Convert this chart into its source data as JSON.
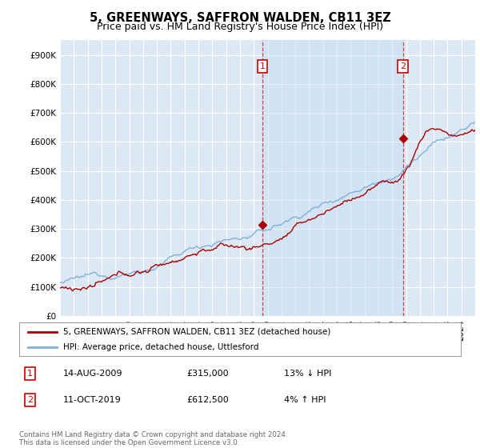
{
  "title": "5, GREENWAYS, SAFFRON WALDEN, CB11 3EZ",
  "subtitle": "Price paid vs. HM Land Registry's House Price Index (HPI)",
  "ylabel_ticks": [
    "£0",
    "£100K",
    "£200K",
    "£300K",
    "£400K",
    "£500K",
    "£600K",
    "£700K",
    "£800K",
    "£900K"
  ],
  "ytick_values": [
    0,
    100000,
    200000,
    300000,
    400000,
    500000,
    600000,
    700000,
    800000,
    900000
  ],
  "ylim": [
    0,
    950000
  ],
  "xlim_left": 1995,
  "xlim_right": 2025,
  "xlabel_years": [
    1995,
    1996,
    1997,
    1998,
    1999,
    2000,
    2001,
    2002,
    2003,
    2004,
    2005,
    2006,
    2007,
    2008,
    2009,
    2010,
    2011,
    2012,
    2013,
    2014,
    2015,
    2016,
    2017,
    2018,
    2019,
    2020,
    2021,
    2022,
    2023,
    2024
  ],
  "plot_bg": "#dce9f5",
  "shade_between_color": "#c8dff0",
  "line_color_property": "#aa0000",
  "line_color_hpi": "#7fb0d8",
  "sale1_year": 2009.62,
  "sale1_price": 315000,
  "sale2_year": 2019.78,
  "sale2_price": 612500,
  "legend_property": "5, GREENWAYS, SAFFRON WALDEN, CB11 3EZ (detached house)",
  "legend_hpi": "HPI: Average price, detached house, Uttlesford",
  "annotation1_label": "1",
  "annotation1_date": "14-AUG-2009",
  "annotation1_price": "£315,000",
  "annotation1_pct": "13% ↓ HPI",
  "annotation2_label": "2",
  "annotation2_date": "11-OCT-2019",
  "annotation2_price": "£612,500",
  "annotation2_pct": "4% ↑ HPI",
  "footer": "Contains HM Land Registry data © Crown copyright and database right 2024.\nThis data is licensed under the Open Government Licence v3.0.",
  "title_fontsize": 10.5,
  "subtitle_fontsize": 9,
  "tick_fontsize": 7.5,
  "legend_fontsize": 7.5,
  "ann_fontsize": 8
}
